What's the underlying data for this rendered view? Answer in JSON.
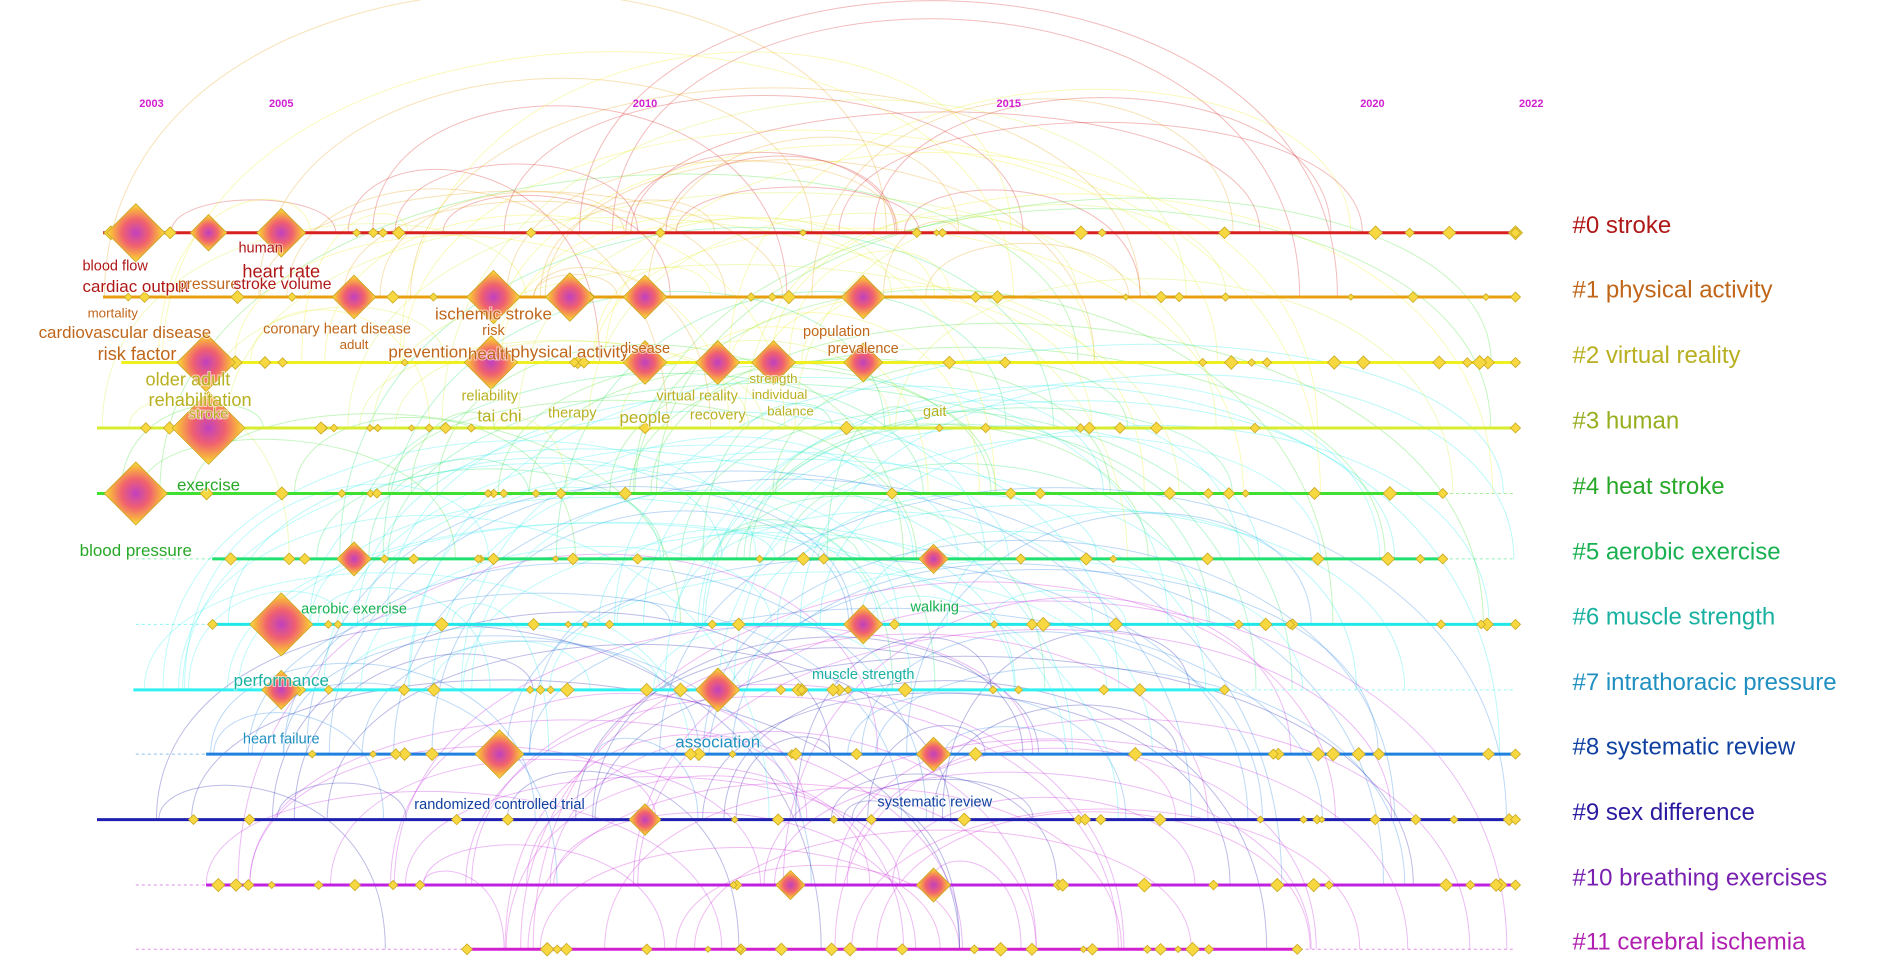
{
  "years": [
    2003,
    2005,
    2010,
    2015,
    2020,
    2022
  ],
  "clusters": [
    {
      "label": "#0 stroke"
    },
    {
      "label": "#1 physical activity"
    },
    {
      "label": "#2 virtual reality"
    },
    {
      "label": "#3 human"
    },
    {
      "label": "#4 heat stroke"
    },
    {
      "label": "#5 aerobic exercise"
    },
    {
      "label": "#6 muscle strength"
    },
    {
      "label": "#7 intrathoracic pressure"
    },
    {
      "label": "#8 systematic review"
    },
    {
      "label": "#9 sex difference"
    },
    {
      "label": "#10 breathing exercises"
    },
    {
      "label": "#11 cerebral ischemia"
    }
  ],
  "keywords": [
    "blood flow",
    "human",
    "heart rate",
    "cardiac output",
    "pressure",
    "stroke volume",
    "mortality",
    "coronary heart disease",
    "ischemic stroke",
    "cardiovascular disease",
    "risk",
    "adult",
    "population",
    "risk factor",
    "prevention",
    "health",
    "physical activity",
    "disease",
    "prevalence",
    "older adult",
    "strength",
    "reliability",
    "virtual reality",
    "individual",
    "rehabilitation",
    "tai chi",
    "therapy",
    "people",
    "recovery",
    "balance",
    "gait",
    "stroke",
    "exercise",
    "blood pressure",
    "aerobic exercise",
    "walking",
    "performance",
    "muscle strength",
    "heart failure",
    "association",
    "randomized controlled trial",
    "systematic review"
  ]
}
